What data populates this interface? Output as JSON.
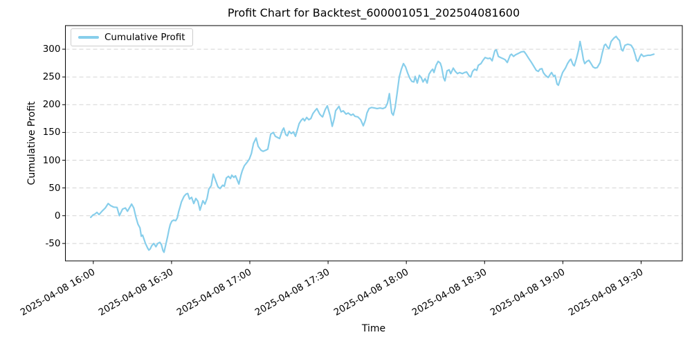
{
  "chart_data": {
    "type": "line",
    "title": "Profit Chart for Backtest_600001051_202504081600",
    "xlabel": "Time",
    "ylabel": "Cumulative Profit",
    "series_name": "Cumulative Profit",
    "line_color": "#87CEEB",
    "grid_color": "#d3d3d3",
    "grid_style": "dashed",
    "legend_position": "upper left",
    "x_unit": "minutes since 2025-04-08 16:00",
    "xlim": [
      -10.7,
      225.8
    ],
    "ylim": [
      -81.4,
      342.5
    ],
    "y_ticks": [
      -50,
      0,
      50,
      100,
      150,
      200,
      250,
      300
    ],
    "x_ticks": [
      {
        "m": 0,
        "label": "2025-04-08 16:00"
      },
      {
        "m": 30,
        "label": "2025-04-08 16:30"
      },
      {
        "m": 60,
        "label": "2025-04-08 17:00"
      },
      {
        "m": 90,
        "label": "2025-04-08 17:30"
      },
      {
        "m": 120,
        "label": "2025-04-08 18:00"
      },
      {
        "m": 150,
        "label": "2025-04-08 18:30"
      },
      {
        "m": 180,
        "label": "2025-04-08 19:00"
      },
      {
        "m": 210,
        "label": "2025-04-08 19:30"
      }
    ],
    "points": [
      [
        -1,
        -3
      ],
      [
        -0.2,
        1
      ],
      [
        0.6,
        3
      ],
      [
        1.4,
        6
      ],
      [
        2.2,
        2
      ],
      [
        3.3,
        8
      ],
      [
        4.6,
        14
      ],
      [
        5.7,
        22
      ],
      [
        6.7,
        18
      ],
      [
        7.8,
        15.5
      ],
      [
        9.1,
        15
      ],
      [
        10,
        0
      ],
      [
        11.2,
        12
      ],
      [
        12.3,
        14
      ],
      [
        13.1,
        8
      ],
      [
        14.7,
        21
      ],
      [
        15.5,
        14
      ],
      [
        16.3,
        -2
      ],
      [
        17.1,
        -15
      ],
      [
        17.9,
        -22
      ],
      [
        18.4,
        -37
      ],
      [
        18.9,
        -35
      ],
      [
        19.4,
        -42
      ],
      [
        20,
        -50
      ],
      [
        20.8,
        -58
      ],
      [
        21.3,
        -62
      ],
      [
        21.8,
        -60
      ],
      [
        22.4,
        -54
      ],
      [
        23.2,
        -50
      ],
      [
        24,
        -56
      ],
      [
        24.7,
        -50
      ],
      [
        25.5,
        -48
      ],
      [
        26.1,
        -52
      ],
      [
        26.7,
        -63
      ],
      [
        27.1,
        -66
      ],
      [
        27.9,
        -50
      ],
      [
        28.5,
        -37
      ],
      [
        29,
        -25
      ],
      [
        29.5,
        -16
      ],
      [
        30.1,
        -10
      ],
      [
        30.8,
        -8
      ],
      [
        31.6,
        -9
      ],
      [
        32.2,
        -4
      ],
      [
        32.7,
        7
      ],
      [
        33.2,
        15
      ],
      [
        33.8,
        25
      ],
      [
        34.3,
        30
      ],
      [
        34.8,
        35
      ],
      [
        35.6,
        39
      ],
      [
        36.2,
        40
      ],
      [
        36.9,
        30
      ],
      [
        37.7,
        33
      ],
      [
        38.5,
        22
      ],
      [
        39.3,
        31
      ],
      [
        40.1,
        26
      ],
      [
        40.9,
        10
      ],
      [
        42,
        27
      ],
      [
        42.8,
        21
      ],
      [
        43.6,
        31
      ],
      [
        44.3,
        48
      ],
      [
        45.2,
        54
      ],
      [
        46,
        75
      ],
      [
        47,
        62
      ],
      [
        47.8,
        52
      ],
      [
        48.6,
        49
      ],
      [
        49.6,
        55
      ],
      [
        50.2,
        53
      ],
      [
        51,
        68
      ],
      [
        51.8,
        71
      ],
      [
        52.6,
        67
      ],
      [
        53.1,
        73
      ],
      [
        53.9,
        69
      ],
      [
        54.5,
        72
      ],
      [
        55.8,
        57
      ],
      [
        56.6,
        73
      ],
      [
        57.1,
        81
      ],
      [
        57.9,
        90
      ],
      [
        58.9,
        96
      ],
      [
        59.8,
        102
      ],
      [
        60.6,
        112
      ],
      [
        61.4,
        130
      ],
      [
        62.4,
        140
      ],
      [
        63.2,
        125
      ],
      [
        64.3,
        118
      ],
      [
        65.1,
        116
      ],
      [
        66.1,
        118
      ],
      [
        66.9,
        120
      ],
      [
        68,
        147
      ],
      [
        69,
        150
      ],
      [
        69.8,
        143
      ],
      [
        70.6,
        141
      ],
      [
        71.4,
        139
      ],
      [
        72.5,
        154
      ],
      [
        73,
        158
      ],
      [
        73.8,
        146
      ],
      [
        74.4,
        144
      ],
      [
        75.1,
        152
      ],
      [
        75.9,
        148
      ],
      [
        76.7,
        151
      ],
      [
        77.5,
        143
      ],
      [
        78.9,
        166
      ],
      [
        79.7,
        172
      ],
      [
        80.4,
        175
      ],
      [
        81,
        171
      ],
      [
        81.8,
        177
      ],
      [
        82.6,
        173
      ],
      [
        83.4,
        175
      ],
      [
        84.2,
        184
      ],
      [
        85,
        189
      ],
      [
        85.7,
        193
      ],
      [
        86.8,
        183
      ],
      [
        87.6,
        179
      ],
      [
        87.9,
        178
      ],
      [
        88.9,
        191
      ],
      [
        89.7,
        198
      ],
      [
        90.8,
        180
      ],
      [
        91.6,
        161
      ],
      [
        92.4,
        175
      ],
      [
        92.9,
        189
      ],
      [
        94.2,
        197
      ],
      [
        95,
        187
      ],
      [
        95.8,
        189
      ],
      [
        96.9,
        183
      ],
      [
        97.7,
        185
      ],
      [
        98.8,
        181
      ],
      [
        99.6,
        183
      ],
      [
        100.3,
        179
      ],
      [
        101.4,
        178
      ],
      [
        102.5,
        173
      ],
      [
        103.5,
        162
      ],
      [
        104.3,
        172
      ],
      [
        104.9,
        185
      ],
      [
        105.7,
        193
      ],
      [
        106.7,
        195
      ],
      [
        107.8,
        194
      ],
      [
        108.8,
        193
      ],
      [
        109.9,
        194
      ],
      [
        111,
        193
      ],
      [
        112,
        195
      ],
      [
        112.8,
        203
      ],
      [
        113.5,
        220
      ],
      [
        113.9,
        203
      ],
      [
        114.4,
        185
      ],
      [
        115,
        181
      ],
      [
        115.7,
        195
      ],
      [
        116.5,
        222
      ],
      [
        117.3,
        250
      ],
      [
        118.1,
        264
      ],
      [
        118.9,
        274
      ],
      [
        119.7,
        268
      ],
      [
        120.5,
        257
      ],
      [
        121.3,
        248
      ],
      [
        122.1,
        242
      ],
      [
        122.9,
        241
      ],
      [
        123.4,
        251
      ],
      [
        124.2,
        239
      ],
      [
        125,
        253
      ],
      [
        125.8,
        248
      ],
      [
        126.4,
        241
      ],
      [
        127.2,
        247
      ],
      [
        128,
        239
      ],
      [
        128.7,
        255
      ],
      [
        129.5,
        261
      ],
      [
        130.1,
        264
      ],
      [
        130.6,
        258
      ],
      [
        131.4,
        271
      ],
      [
        132.2,
        278
      ],
      [
        133,
        275
      ],
      [
        133.5,
        268
      ],
      [
        134.3,
        248
      ],
      [
        134.8,
        243
      ],
      [
        135.6,
        261
      ],
      [
        136.4,
        263
      ],
      [
        137,
        256
      ],
      [
        138,
        266
      ],
      [
        138.8,
        260
      ],
      [
        139.6,
        256
      ],
      [
        140.4,
        258
      ],
      [
        141.5,
        256
      ],
      [
        142.3,
        258
      ],
      [
        143.1,
        259
      ],
      [
        144.1,
        252
      ],
      [
        144.7,
        250
      ],
      [
        145.4,
        260
      ],
      [
        146.2,
        264
      ],
      [
        147,
        262
      ],
      [
        147.6,
        271
      ],
      [
        148.6,
        274
      ],
      [
        149.4,
        280
      ],
      [
        150.2,
        285
      ],
      [
        151.3,
        283
      ],
      [
        152.1,
        284
      ],
      [
        152.9,
        279
      ],
      [
        153.9,
        297
      ],
      [
        154.5,
        299
      ],
      [
        155.3,
        287
      ],
      [
        156.1,
        285
      ],
      [
        157.1,
        283
      ],
      [
        157.9,
        281
      ],
      [
        158.7,
        276
      ],
      [
        159.8,
        289
      ],
      [
        160.3,
        291
      ],
      [
        161.1,
        287
      ],
      [
        161.9,
        290
      ],
      [
        163.2,
        293
      ],
      [
        164,
        295
      ],
      [
        165.1,
        296
      ],
      [
        165.9,
        291
      ],
      [
        166.7,
        285
      ],
      [
        167.7,
        278
      ],
      [
        168.5,
        272
      ],
      [
        169.3,
        266
      ],
      [
        169.8,
        262
      ],
      [
        170.6,
        260
      ],
      [
        171.2,
        264
      ],
      [
        172,
        265
      ],
      [
        172.5,
        258
      ],
      [
        173.3,
        253
      ],
      [
        174.4,
        249
      ],
      [
        175.2,
        255
      ],
      [
        175.7,
        258
      ],
      [
        176.5,
        251
      ],
      [
        177,
        253
      ],
      [
        177.8,
        237
      ],
      [
        178.3,
        235
      ],
      [
        179.1,
        247
      ],
      [
        179.9,
        258
      ],
      [
        181,
        266
      ],
      [
        181.8,
        274
      ],
      [
        182.6,
        280
      ],
      [
        183.1,
        282
      ],
      [
        183.9,
        272
      ],
      [
        184.4,
        270
      ],
      [
        185.2,
        283
      ],
      [
        186,
        298
      ],
      [
        186.6,
        314
      ],
      [
        187.4,
        295
      ],
      [
        187.9,
        281
      ],
      [
        188.4,
        274
      ],
      [
        189.2,
        278
      ],
      [
        190,
        280
      ],
      [
        190.8,
        274
      ],
      [
        191.6,
        268
      ],
      [
        192.4,
        266
      ],
      [
        193.2,
        267
      ],
      [
        194.3,
        276
      ],
      [
        195.1,
        293
      ],
      [
        195.9,
        307
      ],
      [
        196.4,
        309
      ],
      [
        197.2,
        303
      ],
      [
        197.7,
        301
      ],
      [
        198.5,
        314
      ],
      [
        199.6,
        320
      ],
      [
        200.4,
        323
      ],
      [
        201.2,
        318
      ],
      [
        201.7,
        316
      ],
      [
        202.5,
        299
      ],
      [
        203,
        297
      ],
      [
        203.8,
        307
      ],
      [
        204.9,
        309
      ],
      [
        205.7,
        308
      ],
      [
        206.2,
        307
      ],
      [
        207,
        301
      ],
      [
        207.8,
        289
      ],
      [
        208.3,
        280
      ],
      [
        208.8,
        278
      ],
      [
        209.6,
        287
      ],
      [
        210.1,
        291
      ],
      [
        210.9,
        287
      ],
      [
        211.7,
        288
      ],
      [
        212.5,
        289
      ],
      [
        213.5,
        289
      ],
      [
        214.9,
        291
      ]
    ]
  }
}
